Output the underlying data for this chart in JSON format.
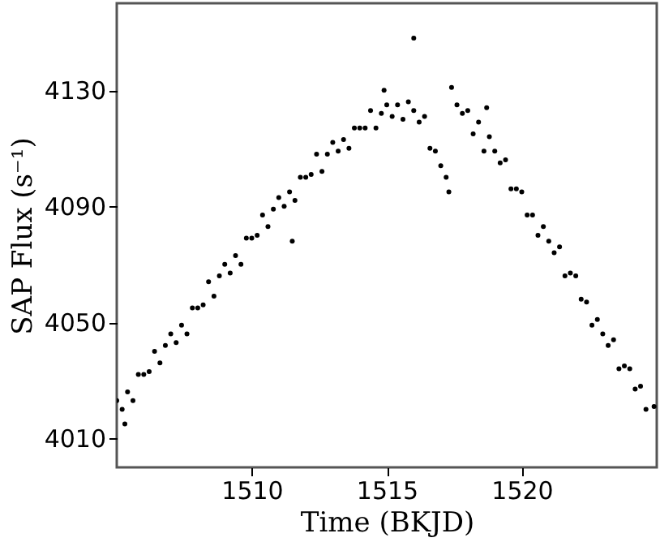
{
  "chart_data": {
    "type": "scatter",
    "xlabel": "Time (BKJD)",
    "ylabel": "SAP Flux (s⁻¹)",
    "xlim": [
      1505,
      1525
    ],
    "ylim": [
      4000,
      4160
    ],
    "xticks": [
      1510,
      1515,
      1520
    ],
    "yticks": [
      4010,
      4050,
      4090,
      4130
    ],
    "grid": false,
    "marker": "circle",
    "series": [
      {
        "color": "#000000",
        "x": [
          1505.0,
          1505.2,
          1505.4,
          1505.6,
          1505.8,
          1506.0,
          1506.2,
          1506.4,
          1506.6,
          1506.8,
          1507.0,
          1507.2,
          1507.4,
          1507.6,
          1507.8,
          1508.0,
          1508.2,
          1508.4,
          1508.6,
          1508.8,
          1509.0,
          1509.2,
          1509.4,
          1509.6,
          1509.8,
          1510.0,
          1510.2,
          1510.4,
          1510.6,
          1510.8,
          1511.0,
          1511.2,
          1511.4,
          1511.6,
          1511.8,
          1512.0,
          1512.2,
          1512.4,
          1512.6,
          1512.8,
          1513.0,
          1513.2,
          1513.4,
          1513.6,
          1513.8,
          1514.0,
          1514.2,
          1514.4,
          1514.6,
          1514.8,
          1515.0,
          1515.2,
          1515.4,
          1515.6,
          1515.8,
          1516.0,
          1516.2,
          1516.4,
          1516.6,
          1516.8,
          1517.0,
          1517.2,
          1517.3,
          1517.4,
          1517.6,
          1517.8,
          1518.0,
          1518.2,
          1518.4,
          1518.6,
          1518.8,
          1519.0,
          1519.2,
          1519.4,
          1519.6,
          1519.8,
          1520.0,
          1520.2,
          1520.4,
          1520.6,
          1520.8,
          1521.0,
          1521.2,
          1521.4,
          1521.6,
          1521.8,
          1522.0,
          1522.2,
          1522.4,
          1522.6,
          1522.8,
          1523.0,
          1523.2,
          1523.4,
          1523.6,
          1523.8,
          1524.0,
          1524.2,
          1524.4,
          1524.6,
          1524.9,
          1516.0,
          1518.7,
          1511.5,
          1505.3,
          1514.9
        ],
        "values": [
          4023,
          4020,
          4026,
          4023,
          4032,
          4032,
          4033,
          4040,
          4036,
          4042,
          4046,
          4043,
          4049,
          4046,
          4055,
          4055,
          4056,
          4064,
          4059,
          4066,
          4070,
          4067,
          4073,
          4070,
          4079,
          4079,
          4080,
          4087,
          4083,
          4089,
          4093,
          4090,
          4095,
          4092,
          4100,
          4100,
          4101,
          4108,
          4102,
          4108,
          4112,
          4109,
          4113,
          4110,
          4117,
          4117,
          4117,
          4123,
          4117,
          4122,
          4125,
          4121,
          4125,
          4120,
          4126,
          4123,
          4119,
          4121,
          4110,
          4109,
          4104,
          4100,
          4095,
          4131,
          4125,
          4122,
          4123,
          4115,
          4119,
          4109,
          4114,
          4109,
          4105,
          4106,
          4096,
          4096,
          4095,
          4087,
          4087,
          4080,
          4083,
          4078,
          4074,
          4076,
          4066,
          4067,
          4066,
          4058,
          4057,
          4049,
          4051,
          4046,
          4042,
          4044,
          4034,
          4035,
          4034,
          4027,
          4028,
          4020,
          4021,
          4148,
          4124,
          4078,
          4015,
          4130
        ]
      }
    ]
  }
}
